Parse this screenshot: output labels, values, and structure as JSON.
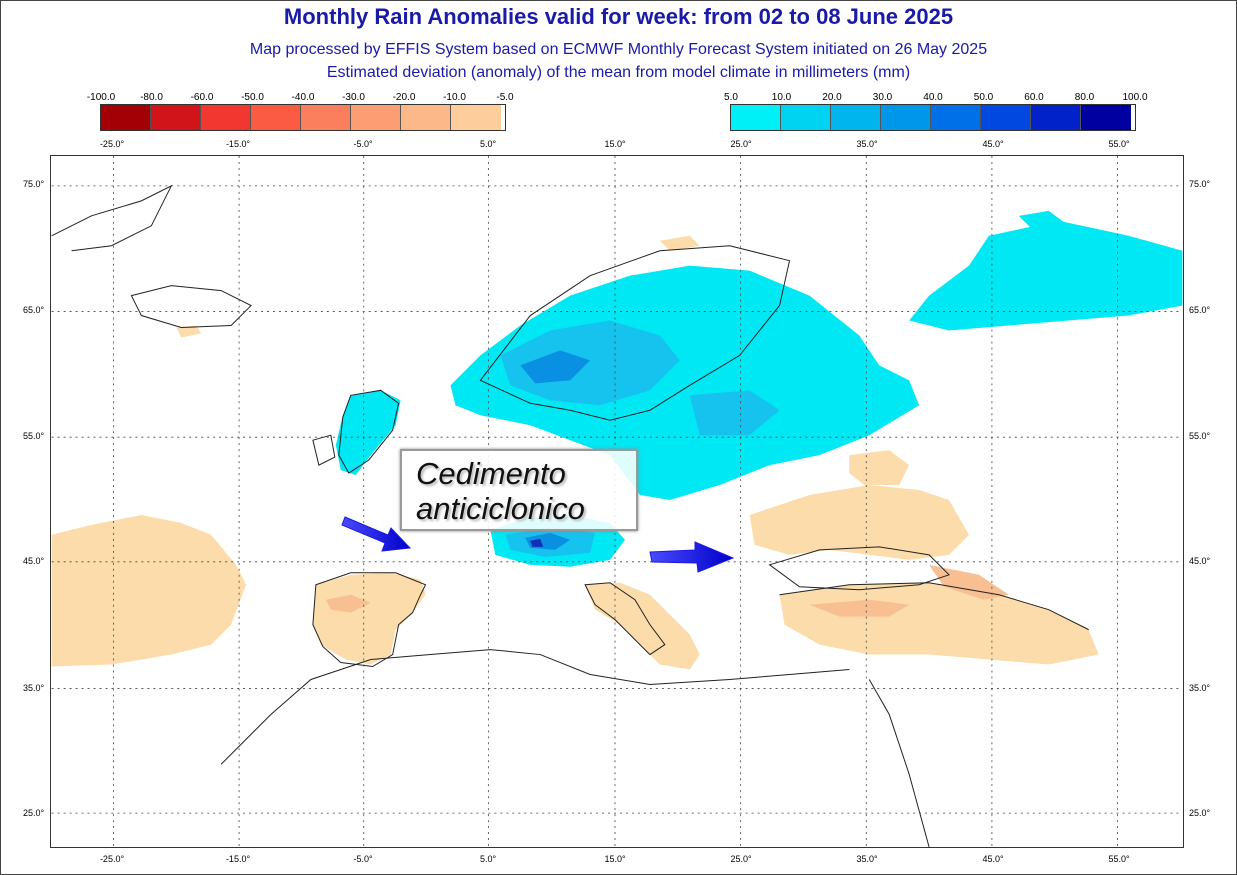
{
  "header": {
    "title": "Monthly Rain Anomalies valid for week: from 02 to 08 June 2025",
    "subtitle1": "Map processed by EFFIS System based on ECMWF Monthly Forecast System initiated on 26 May 2025",
    "subtitle2": "Estimated deviation (anomaly) of the mean from model climate in millimeters (mm)"
  },
  "legend": {
    "negative_labels": [
      "-100.0",
      "-80.0",
      "-60.0",
      "-50.0",
      "-40.0",
      "-30.0",
      "-20.0",
      "-10.0",
      "-5.0"
    ],
    "negative_colors": [
      "#a30006",
      "#d0141a",
      "#f1372f",
      "#fb5a43",
      "#fb7f5c",
      "#fc9d74",
      "#fdb88a",
      "#fdcd9c"
    ],
    "positive_labels": [
      "5.0",
      "10.0",
      "20.0",
      "30.0",
      "40.0",
      "50.0",
      "60.0",
      "80.0",
      "100.0"
    ],
    "positive_colors": [
      "#00f0f7",
      "#00d2f2",
      "#00b4ee",
      "#0096ea",
      "#0070e8",
      "#0048e0",
      "#0022c8",
      "#0000a0"
    ]
  },
  "axes": {
    "longitude_labels": [
      "-25.0°",
      "-15.0°",
      "-5.0°",
      "5.0°",
      "15.0°",
      "25.0°",
      "35.0°",
      "45.0°",
      "55.0°"
    ],
    "latitude_labels": [
      "75.0°",
      "65.0°",
      "55.0°",
      "45.0°",
      "35.0°",
      "25.0°"
    ]
  },
  "annotation": {
    "line1": "Cedimento",
    "line2": "anticiclonico",
    "arrow_color": "#1a1ae6"
  },
  "colors": {
    "dry": "#fcdcaa",
    "dry_strong": "#f8bf92",
    "wet": "#00e8f4",
    "wet_mid": "#16c2ee",
    "wet_high": "#0a90e2",
    "wet_peak": "#1030b8",
    "title": "#1a1aa8"
  }
}
